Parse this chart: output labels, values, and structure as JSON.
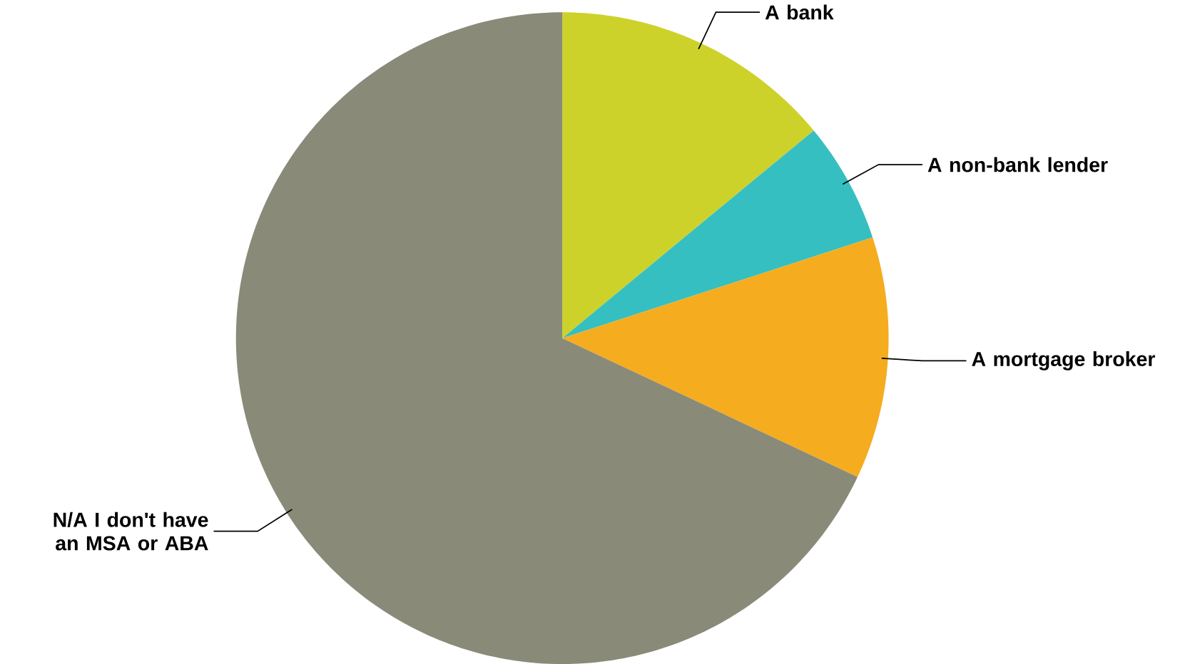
{
  "chart_data": {
    "type": "pie",
    "categories": [
      "A bank",
      "A non-bank lender",
      "A mortgage broker",
      "N/A I don't have an MSA or ABA"
    ],
    "values": [
      14,
      6,
      12,
      68
    ],
    "colors": [
      "#cdd22a",
      "#35bfc1",
      "#f5ac1f",
      "#898a78"
    ]
  }
}
